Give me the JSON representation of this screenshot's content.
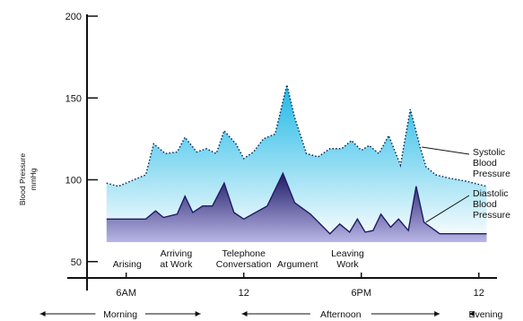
{
  "chart_data": {
    "type": "area",
    "ylabel_line1": "Blood Pressure",
    "ylabel_line2": "mmHg",
    "ylim": [
      40,
      200
    ],
    "yticks": [
      50,
      100,
      150,
      200
    ],
    "xlim": [
      4,
      25.2
    ],
    "xticks": [
      {
        "hour": 6,
        "label": "6AM"
      },
      {
        "hour": 12,
        "label": "12"
      },
      {
        "hour": 18,
        "label": "6PM"
      },
      {
        "hour": 24,
        "label": "12"
      }
    ],
    "series": [
      {
        "key": "systolic",
        "label_lines": [
          "Systolic",
          "Blood",
          "Pressure"
        ],
        "style": "dotted",
        "x": [
          5.0,
          5.6,
          6.2,
          7.0,
          7.4,
          8.0,
          8.6,
          9.0,
          9.6,
          10.1,
          10.6,
          11.0,
          11.6,
          12.0,
          12.5,
          13.0,
          13.6,
          14.2,
          14.6,
          15.2,
          15.8,
          16.4,
          17.0,
          17.5,
          18.0,
          18.4,
          18.9,
          19.4,
          20.0,
          20.5,
          21.0,
          21.3,
          21.8,
          22.5,
          23.4,
          24.4
        ],
        "values": [
          98,
          96,
          99,
          103,
          122,
          116,
          117,
          126,
          117,
          119,
          116,
          130,
          122,
          113,
          117,
          125,
          128,
          158,
          138,
          116,
          114,
          119,
          119,
          124,
          118,
          121,
          116,
          127,
          109,
          143,
          120,
          108,
          103,
          101,
          99,
          96
        ]
      },
      {
        "key": "diastolic",
        "label_lines": [
          "Diastolic",
          "Blood",
          "Pressure"
        ],
        "style": "solid",
        "x": [
          5.0,
          7.0,
          7.5,
          7.9,
          8.6,
          9.0,
          9.4,
          9.9,
          10.4,
          11.0,
          11.5,
          12.0,
          12.6,
          13.2,
          14.0,
          14.6,
          15.4,
          16.4,
          16.9,
          17.4,
          17.8,
          18.2,
          18.6,
          19.0,
          19.5,
          19.9,
          20.4,
          20.8,
          21.2,
          22.0,
          23.0,
          24.4
        ],
        "values": [
          76,
          76,
          81,
          77,
          79,
          90,
          80,
          84,
          84,
          98,
          80,
          76,
          80,
          84,
          104,
          86,
          79,
          67,
          73,
          68,
          76,
          68,
          69,
          79,
          71,
          76,
          69,
          96,
          74,
          67,
          67,
          67
        ]
      }
    ],
    "annotations": [
      {
        "lines": [
          "Arising"
        ],
        "hour": 6.05
      },
      {
        "lines": [
          "Arriving",
          "at Work"
        ],
        "hour": 8.55
      },
      {
        "lines": [
          "Telephone",
          "Conversation"
        ],
        "hour": 12.0
      },
      {
        "lines": [
          "Argument"
        ],
        "hour": 14.75
      },
      {
        "lines": [
          "Leaving",
          "Work"
        ],
        "hour": 17.3
      }
    ],
    "periods": [
      {
        "label": "Morning",
        "start": 1.6,
        "end": 9.8
      },
      {
        "label": "Afternoon",
        "start": 11.9,
        "end": 22.0
      },
      {
        "label": "Evening",
        "start": 23.5,
        "end": 25.2
      }
    ],
    "colors": {
      "systolic_top": "#1fb8e6",
      "systolic_bottom": "#ffffff",
      "diastolic_top": "#1e1a66",
      "diastolic_bottom": "#b8b6e6",
      "axis": "#111111"
    }
  }
}
